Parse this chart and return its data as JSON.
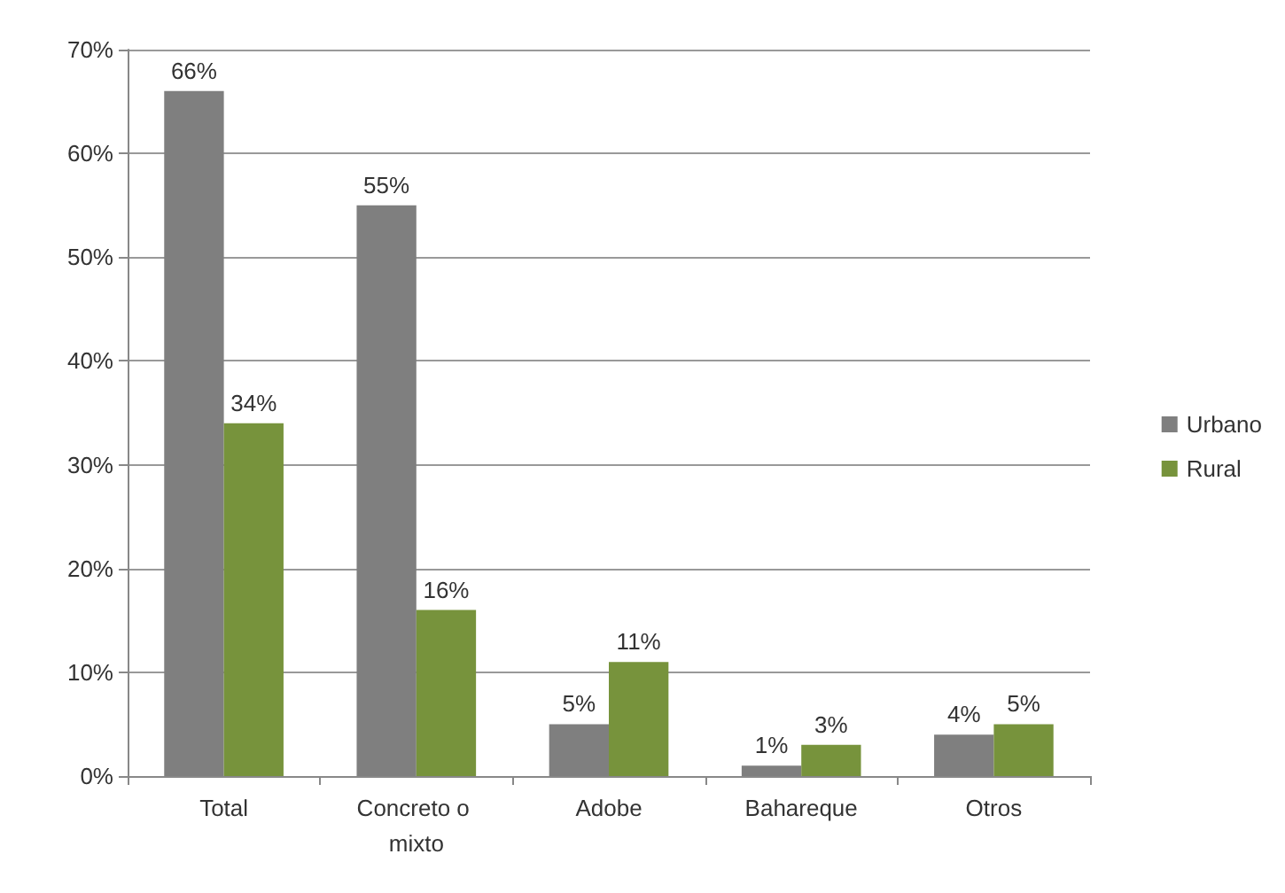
{
  "chart_data": {
    "type": "bar",
    "categories": [
      "Total",
      "Concreto o mixto",
      "Adobe",
      "Bahareque",
      "Otros"
    ],
    "series": [
      {
        "name": "Urbano",
        "color": "#7f7f7f",
        "values": [
          66,
          55,
          5,
          1,
          4
        ],
        "value_labels": [
          "66%",
          "55%",
          "5%",
          "1%",
          "4%"
        ]
      },
      {
        "name": "Rural",
        "color": "#77933c",
        "values": [
          34,
          16,
          11,
          3,
          5
        ],
        "value_labels": [
          "34%",
          "16%",
          "11%",
          "3%",
          "5%"
        ]
      }
    ],
    "ylim": [
      0,
      70
    ],
    "yticks": [
      {
        "value": 0,
        "label": "0%"
      },
      {
        "value": 10,
        "label": "10%"
      },
      {
        "value": 20,
        "label": "20%"
      },
      {
        "value": 30,
        "label": "30%"
      },
      {
        "value": 40,
        "label": "40%"
      },
      {
        "value": 50,
        "label": "50%"
      },
      {
        "value": 60,
        "label": "60%"
      },
      {
        "value": 70,
        "label": "70%"
      }
    ],
    "grid": "y",
    "legend": "right"
  }
}
